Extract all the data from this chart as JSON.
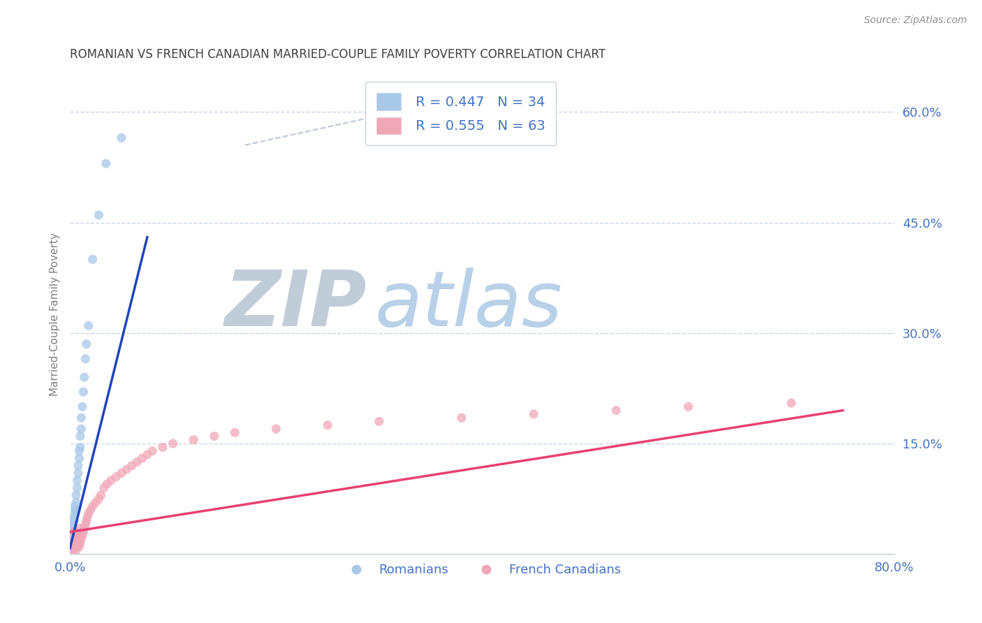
{
  "title": "ROMANIAN VS FRENCH CANADIAN MARRIED-COUPLE FAMILY POVERTY CORRELATION CHART",
  "source": "Source: ZipAtlas.com",
  "ylabel": "Married-Couple Family Poverty",
  "xlim": [
    0.0,
    0.8
  ],
  "ylim": [
    0.0,
    0.65
  ],
  "yticks_right": [
    0.0,
    0.15,
    0.3,
    0.45,
    0.6
  ],
  "ytick_right_labels": [
    "",
    "15.0%",
    "30.0%",
    "45.0%",
    "60.0%"
  ],
  "background_color": "#ffffff",
  "grid_color": "#c8d4e8",
  "title_color": "#404040",
  "legend_color": "#4472c4",
  "blue_scatter_color": "#a8c8e8",
  "pink_scatter_color": "#f0a8b8",
  "blue_line_color": "#2244bb",
  "pink_line_color": "#e84070",
  "ref_line_color": "#a8b8cc",
  "watermark_zip_color": "#c0ccd8",
  "watermark_atlas_color": "#b8d0e8",
  "legend_R1": "0.447",
  "legend_N1": "34",
  "legend_R2": "0.555",
  "legend_N2": "63",
  "romanian_x": [
    0.001,
    0.002,
    0.002,
    0.003,
    0.003,
    0.003,
    0.004,
    0.004,
    0.005,
    0.005,
    0.005,
    0.006,
    0.006,
    0.006,
    0.007,
    0.007,
    0.008,
    0.008,
    0.009,
    0.009,
    0.01,
    0.01,
    0.011,
    0.011,
    0.012,
    0.013,
    0.014,
    0.015,
    0.016,
    0.018,
    0.022,
    0.028,
    0.035,
    0.05
  ],
  "romanian_y": [
    0.02,
    0.015,
    0.025,
    0.03,
    0.035,
    0.04,
    0.045,
    0.05,
    0.055,
    0.06,
    0.065,
    0.06,
    0.07,
    0.08,
    0.09,
    0.1,
    0.11,
    0.12,
    0.13,
    0.14,
    0.145,
    0.16,
    0.17,
    0.185,
    0.2,
    0.22,
    0.24,
    0.265,
    0.285,
    0.31,
    0.4,
    0.46,
    0.53,
    0.565
  ],
  "french_canadian_x": [
    0.001,
    0.001,
    0.002,
    0.002,
    0.002,
    0.003,
    0.003,
    0.003,
    0.004,
    0.004,
    0.004,
    0.005,
    0.005,
    0.005,
    0.006,
    0.006,
    0.006,
    0.007,
    0.007,
    0.008,
    0.008,
    0.009,
    0.009,
    0.01,
    0.01,
    0.01,
    0.011,
    0.012,
    0.013,
    0.014,
    0.015,
    0.016,
    0.017,
    0.018,
    0.02,
    0.022,
    0.025,
    0.028,
    0.03,
    0.033,
    0.036,
    0.04,
    0.045,
    0.05,
    0.055,
    0.06,
    0.065,
    0.07,
    0.075,
    0.08,
    0.09,
    0.1,
    0.12,
    0.14,
    0.16,
    0.2,
    0.25,
    0.3,
    0.38,
    0.45,
    0.53,
    0.6,
    0.7
  ],
  "french_canadian_y": [
    0.005,
    0.01,
    0.015,
    0.02,
    0.025,
    0.005,
    0.01,
    0.02,
    0.015,
    0.025,
    0.03,
    0.01,
    0.02,
    0.03,
    0.005,
    0.015,
    0.025,
    0.01,
    0.02,
    0.015,
    0.025,
    0.01,
    0.02,
    0.015,
    0.025,
    0.035,
    0.02,
    0.025,
    0.03,
    0.035,
    0.04,
    0.045,
    0.05,
    0.055,
    0.06,
    0.065,
    0.07,
    0.075,
    0.08,
    0.09,
    0.095,
    0.1,
    0.105,
    0.11,
    0.115,
    0.12,
    0.125,
    0.13,
    0.135,
    0.14,
    0.145,
    0.15,
    0.155,
    0.16,
    0.165,
    0.17,
    0.175,
    0.18,
    0.185,
    0.19,
    0.195,
    0.2,
    0.205
  ],
  "blue_line_x0": 0.0,
  "blue_line_y0": 0.008,
  "blue_line_x1": 0.075,
  "blue_line_y1": 0.43,
  "pink_line_x0": 0.0,
  "pink_line_y0": 0.03,
  "pink_line_x1": 0.75,
  "pink_line_y1": 0.195,
  "ref_line_x0": 0.17,
  "ref_line_y0": 0.555,
  "ref_line_x1": 0.43,
  "ref_line_y1": 0.635
}
